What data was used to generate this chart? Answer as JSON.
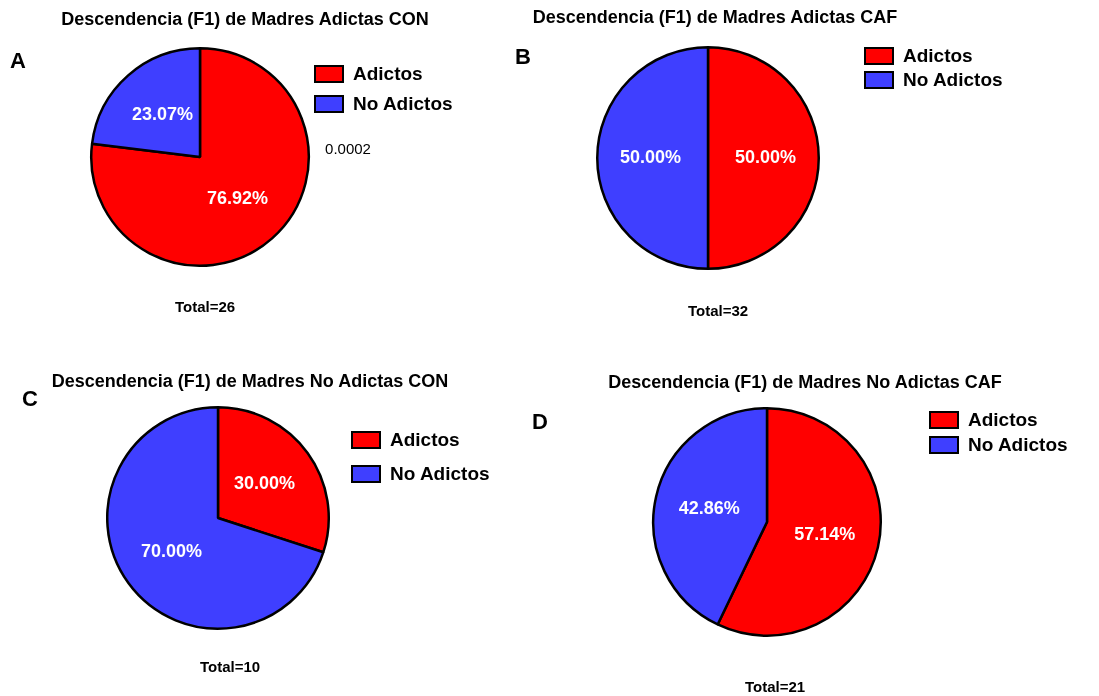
{
  "chart_data": [
    {
      "type": "pie",
      "title": "Descendencia (F1) de Madres Adictas CON",
      "categories": [
        "Adictos",
        "No Adictos"
      ],
      "values": [
        76.92,
        23.07
      ],
      "colors": [
        "#ff0000",
        "#3f3fff"
      ],
      "value_labels": [
        "76.92%",
        "23.07%"
      ],
      "legend": "top right",
      "annotations": [
        "A",
        "Total=26",
        "0.0002"
      ]
    },
    {
      "type": "pie",
      "title": "Descendencia (F1) de Madres Adictas CAF",
      "categories": [
        "Adictos",
        "No Adictos"
      ],
      "values": [
        50.0,
        50.0
      ],
      "colors": [
        "#ff0000",
        "#3f3fff"
      ],
      "value_labels": [
        "50.00%",
        "50.00%"
      ],
      "legend": "top right",
      "annotations": [
        "B",
        "Total=32"
      ]
    },
    {
      "type": "pie",
      "title": "Descendencia (F1) de Madres No Adictas CON",
      "categories": [
        "Adictos",
        "No Adictos"
      ],
      "values": [
        30.0,
        70.0
      ],
      "colors": [
        "#ff0000",
        "#3f3fff"
      ],
      "value_labels": [
        "30.00%",
        "70.00%"
      ],
      "legend": "top right",
      "annotations": [
        "C",
        "Total=10"
      ]
    },
    {
      "type": "pie",
      "title": "Descendencia (F1) de Madres No Adictas CAF",
      "categories": [
        "Adictos",
        "No Adictos"
      ],
      "values": [
        57.14,
        42.86
      ],
      "colors": [
        "#ff0000",
        "#3f3fff"
      ],
      "value_labels": [
        "57.14%",
        "42.86%"
      ],
      "legend": "top right",
      "annotations": [
        "D",
        "Total=21"
      ]
    }
  ]
}
